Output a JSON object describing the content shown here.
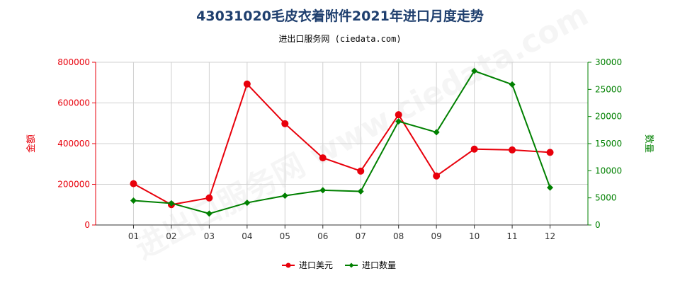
{
  "title": "43031020毛皮衣着附件2021年进口月度走势",
  "subtitle": "进出口服务网 (ciedata.com)",
  "watermark": "进出口服务网 www.ciedata.com",
  "chart_data": {
    "type": "line",
    "categories": [
      "01",
      "02",
      "03",
      "04",
      "05",
      "06",
      "07",
      "08",
      "09",
      "10",
      "11",
      "12"
    ],
    "y_left": {
      "label": "金额",
      "ticks": [
        "0",
        "200000",
        "400000",
        "600000",
        "800000"
      ],
      "range": [
        0,
        800000
      ],
      "color": "#e8000b"
    },
    "y_right": {
      "label": "数量",
      "ticks": [
        "0",
        "5000",
        "10000",
        "15000",
        "20000",
        "25000",
        "30000"
      ],
      "range": [
        0,
        30000
      ],
      "color": "#008000"
    },
    "grid": true,
    "legend_position": "bottom-center",
    "series": [
      {
        "name": "进口美元",
        "axis": "left",
        "color": "#e8000b",
        "values": [
          203000,
          100000,
          133000,
          693000,
          498000,
          330000,
          265000,
          542000,
          241000,
          373000,
          369000,
          357000
        ]
      },
      {
        "name": "进口数量",
        "axis": "right",
        "color": "#008000",
        "values": [
          4500,
          4000,
          2100,
          4100,
          5400,
          6400,
          6200,
          19100,
          17100,
          28400,
          25900,
          6900
        ]
      }
    ]
  }
}
